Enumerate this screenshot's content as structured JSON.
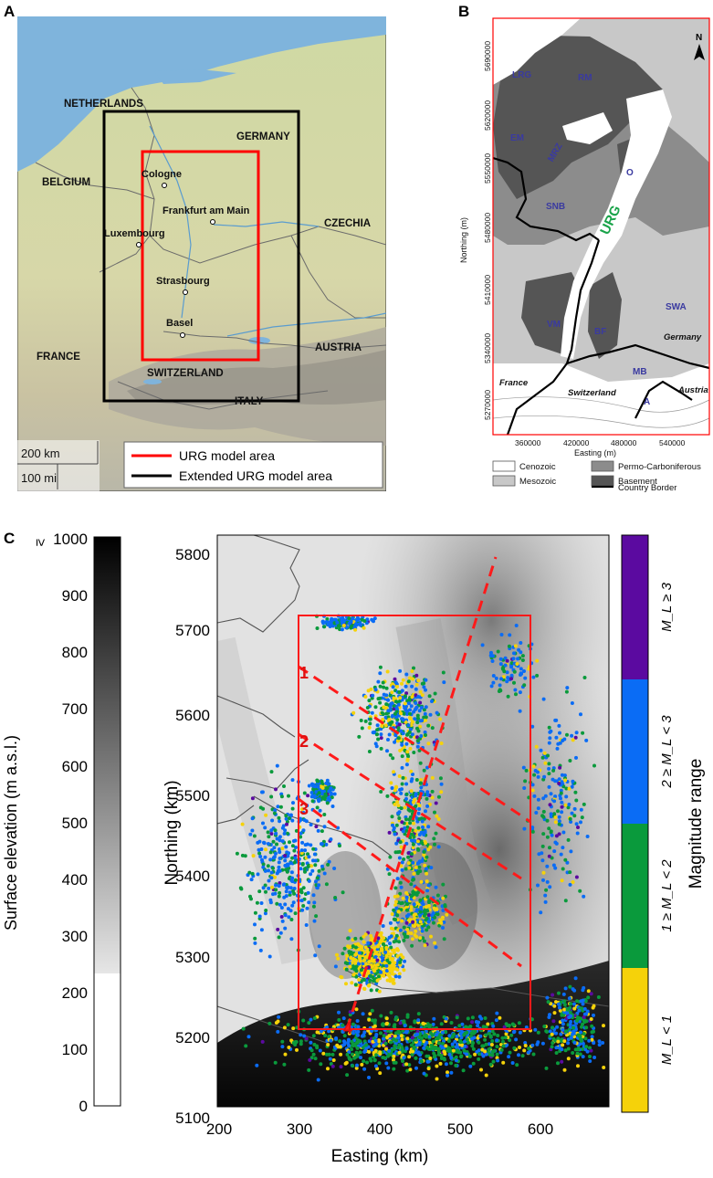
{
  "panels": {
    "a": {
      "letter": "A",
      "countries": [
        "NETHERLANDS",
        "GERMANY",
        "BELGIUM",
        "CZECHIA",
        "FRANCE",
        "AUSTRIA",
        "SWITZERLAND",
        "ITALY"
      ],
      "cities": [
        "Cologne",
        "Frankfurt am Main",
        "Luxembourg",
        "Strasbourg",
        "Basel"
      ],
      "scalebar": {
        "km": "200 km",
        "mi": "100 mi"
      },
      "legend": [
        {
          "label": "URG model area",
          "color": "#ff0000"
        },
        {
          "label": "Extended URG model area",
          "color": "#000000"
        }
      ]
    },
    "b": {
      "letter": "B",
      "north": "N",
      "units": [
        "LRG",
        "RM",
        "EM",
        "MRZ",
        "SNB",
        "O",
        "URG",
        "SWA",
        "VM",
        "BF",
        "MB",
        "A"
      ],
      "place_labels": [
        "Germany",
        "France",
        "Switzerland",
        "Austria"
      ],
      "y_axis_label": "Northing (m)",
      "x_axis_label": "Easting (m)",
      "y_ticks": [
        "5690000",
        "5620000",
        "5550000",
        "5480000",
        "5410000",
        "5340000",
        "5270000"
      ],
      "x_ticks": [
        "360000",
        "420000",
        "480000",
        "540000"
      ],
      "legend": [
        {
          "label": "Cenozoic",
          "color": "#ffffff"
        },
        {
          "label": "Permo-Carboniferous",
          "color": "#8c8c8c"
        },
        {
          "label": "Mesozoic",
          "color": "#c8c8c8"
        },
        {
          "label": "Basement",
          "color": "#555555"
        },
        {
          "label": "Country Border",
          "color": "#000000"
        }
      ]
    },
    "c": {
      "letter": "C",
      "elevation_bar": {
        "label": "Surface elevation (m a.s.l.)",
        "ticks": [
          "1000",
          "900",
          "800",
          "700",
          "600",
          "500",
          "400",
          "300",
          "200",
          "100",
          "0"
        ],
        "top_prefix": "≥"
      },
      "map": {
        "x_label": "Easting (km)",
        "y_label": "Northing (km)",
        "x_ticks": [
          "200",
          "300",
          "400",
          "500",
          "600"
        ],
        "y_ticks": [
          "5800",
          "5700",
          "5600",
          "5500",
          "5400",
          "5300",
          "5200",
          "5100"
        ],
        "section_labels": [
          "1",
          "2",
          "3",
          "4"
        ]
      },
      "magnitude_bar": {
        "label": "Magnitude range",
        "bins": [
          {
            "label": "M_L ≥ 3",
            "color": "#5b0aa0"
          },
          {
            "label": "2 ≥ M_L < 3",
            "color": "#0a6cf5"
          },
          {
            "label": "1 ≥ M_L < 2",
            "color": "#0a9a3c"
          },
          {
            "label": "M_L < 1",
            "color": "#f5d20a"
          }
        ]
      }
    }
  }
}
